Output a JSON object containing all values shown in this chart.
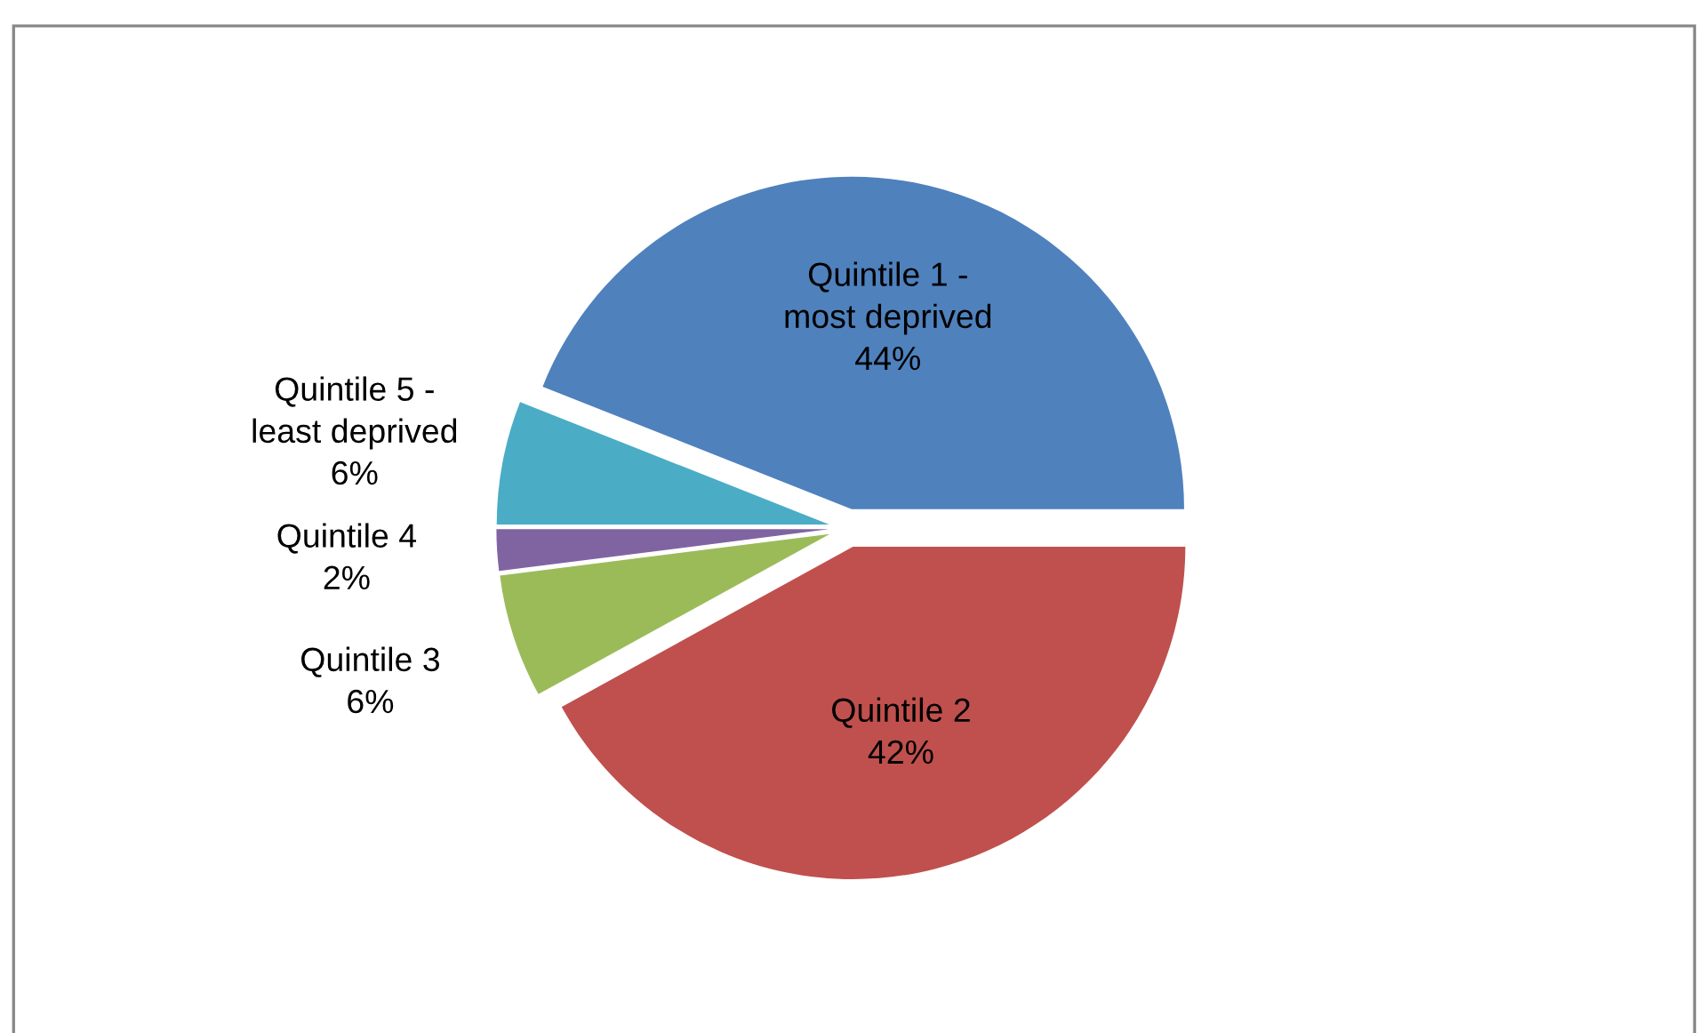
{
  "chart_data": {
    "type": "pie",
    "categories": [
      "Quintile 1 -\nmost deprived",
      "Quintile 2",
      "Quintile 3",
      "Quintile 4",
      "Quintile 5 -\nleast deprived"
    ],
    "values": [
      44,
      42,
      6,
      2,
      6
    ],
    "value_labels": [
      "44%",
      "42%",
      "6%",
      "2%",
      "6%"
    ],
    "colors": [
      "#4f81bd",
      "#c0504d",
      "#9bbb59",
      "#8064a2",
      "#4bacc6"
    ],
    "legend": false
  }
}
